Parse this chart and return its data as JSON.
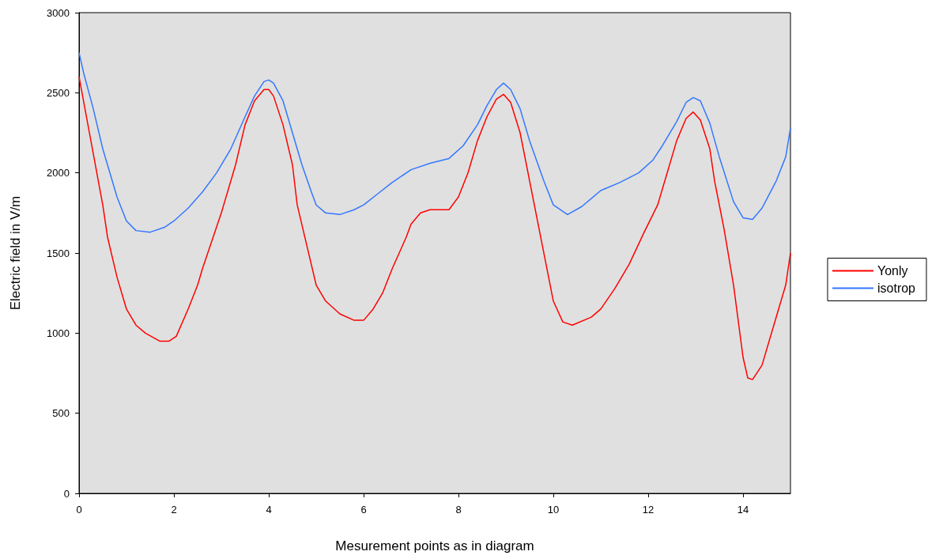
{
  "chart_data": {
    "type": "line",
    "xlabel": "Mesurement points as in diagram",
    "ylabel": "Electric field in V/m",
    "xlim": [
      0,
      15
    ],
    "xticks": [
      0,
      2,
      4,
      6,
      8,
      10,
      12,
      14
    ],
    "ylim": [
      0,
      3000
    ],
    "yticks": [
      0,
      500,
      1000,
      1500,
      2000,
      2500,
      3000
    ],
    "grid": false,
    "legend": "right",
    "marker": "none",
    "line_style": "solid",
    "series": [
      {
        "name": "Yonly",
        "color": "#ff0000",
        "x": [
          0,
          0.25,
          0.5,
          0.6,
          0.8,
          1.0,
          1.2,
          1.4,
          1.7,
          1.9,
          2.05,
          2.3,
          2.5,
          2.6,
          3.0,
          3.3,
          3.5,
          3.7,
          3.9,
          4.0,
          4.1,
          4.3,
          4.5,
          4.6,
          4.8,
          5.0,
          5.2,
          5.5,
          5.8,
          6.0,
          6.2,
          6.4,
          6.6,
          6.9,
          7.0,
          7.2,
          7.4,
          7.8,
          8.0,
          8.2,
          8.4,
          8.6,
          8.8,
          8.95,
          9.1,
          9.3,
          9.5,
          9.7,
          9.9,
          10.0,
          10.2,
          10.4,
          10.8,
          11.0,
          11.3,
          11.6,
          11.9,
          12.2,
          12.4,
          12.6,
          12.8,
          12.95,
          13.1,
          13.3,
          13.4,
          13.6,
          13.8,
          14.0,
          14.1,
          14.2,
          14.4,
          14.6,
          14.9,
          15
        ],
        "values": [
          2600,
          2200,
          1800,
          1600,
          1350,
          1150,
          1050,
          1000,
          950,
          950,
          980,
          1150,
          1300,
          1400,
          1750,
          2050,
          2300,
          2450,
          2520,
          2520,
          2480,
          2300,
          2050,
          1800,
          1550,
          1300,
          1200,
          1120,
          1080,
          1080,
          1150,
          1250,
          1400,
          1600,
          1680,
          1750,
          1770,
          1770,
          1850,
          2000,
          2200,
          2350,
          2460,
          2490,
          2440,
          2250,
          1950,
          1650,
          1350,
          1200,
          1070,
          1050,
          1100,
          1150,
          1280,
          1430,
          1620,
          1800,
          2000,
          2200,
          2340,
          2380,
          2330,
          2150,
          1950,
          1650,
          1300,
          850,
          720,
          710,
          800,
          1000,
          1300,
          1500
        ]
      },
      {
        "name": "isotrop",
        "color": "#3377ff",
        "x": [
          0,
          0.1,
          0.3,
          0.5,
          0.6,
          0.8,
          1.0,
          1.2,
          1.5,
          1.8,
          2.0,
          2.3,
          2.6,
          2.9,
          3.2,
          3.5,
          3.7,
          3.9,
          4.0,
          4.1,
          4.3,
          4.5,
          4.7,
          4.9,
          5.0,
          5.2,
          5.5,
          5.8,
          6.0,
          6.3,
          6.6,
          7.0,
          7.4,
          7.8,
          8.1,
          8.4,
          8.6,
          8.8,
          8.95,
          9.1,
          9.3,
          9.5,
          9.8,
          10.0,
          10.3,
          10.6,
          11.0,
          11.4,
          11.8,
          12.1,
          12.3,
          12.6,
          12.8,
          12.95,
          13.1,
          13.3,
          13.5,
          13.8,
          14.0,
          14.2,
          14.4,
          14.7,
          14.9,
          15
        ],
        "values": [
          2750,
          2620,
          2400,
          2150,
          2050,
          1850,
          1700,
          1640,
          1630,
          1660,
          1700,
          1780,
          1880,
          2000,
          2150,
          2350,
          2480,
          2570,
          2580,
          2560,
          2450,
          2250,
          2050,
          1880,
          1800,
          1750,
          1740,
          1770,
          1800,
          1870,
          1940,
          2020,
          2060,
          2090,
          2170,
          2300,
          2420,
          2520,
          2560,
          2520,
          2400,
          2200,
          1950,
          1800,
          1740,
          1790,
          1890,
          1940,
          2000,
          2080,
          2170,
          2320,
          2440,
          2470,
          2450,
          2310,
          2100,
          1820,
          1720,
          1710,
          1780,
          1950,
          2100,
          2280
        ]
      }
    ]
  }
}
